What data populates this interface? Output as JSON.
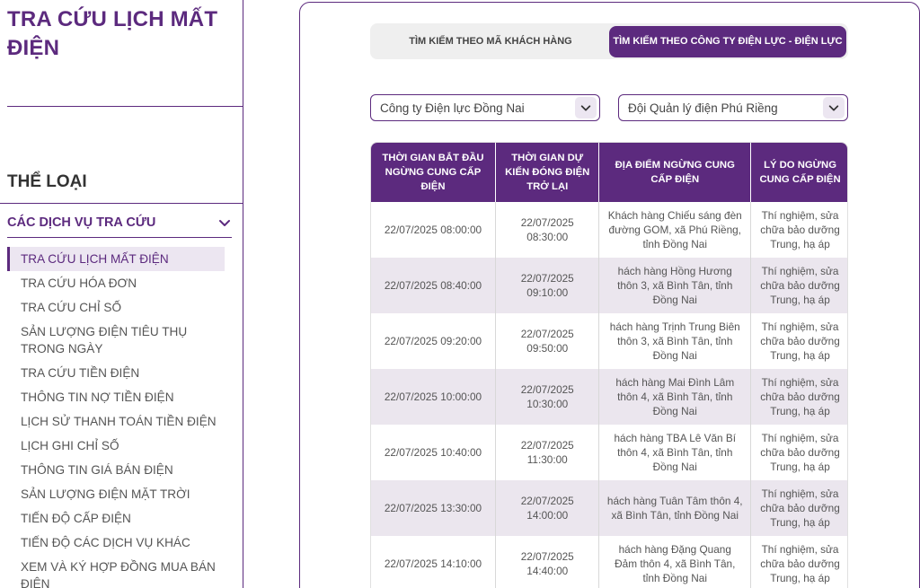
{
  "sidebar": {
    "title": "TRA CỨU LỊCH MẤT ĐIỆN",
    "category_heading": "THỂ LOẠI",
    "group_label": "CÁC DỊCH VỤ TRA CỨU",
    "items": [
      {
        "label": "TRA CỨU LỊCH MẤT ĐIỆN",
        "active": true
      },
      {
        "label": "TRA CỨU HÓA ĐƠN"
      },
      {
        "label": "TRA CỨU CHỈ SỐ"
      },
      {
        "label": "SẢN LƯỢNG ĐIỆN TIÊU THỤ TRONG NGÀY"
      },
      {
        "label": "TRA CỨU TIỀN ĐIỆN"
      },
      {
        "label": "THÔNG TIN NỢ TIỀN ĐIỆN"
      },
      {
        "label": "LỊCH SỬ THANH TOÁN TIỀN ĐIỆN"
      },
      {
        "label": "LỊCH GHI CHỈ SỐ"
      },
      {
        "label": "THÔNG TIN GIÁ BÁN ĐIỆN"
      },
      {
        "label": "SẢN LƯỢNG ĐIỆN MẶT TRỜI"
      },
      {
        "label": "TIẾN ĐỘ CẤP ĐIỆN"
      },
      {
        "label": "TIẾN ĐỘ CÁC DỊCH VỤ KHÁC"
      },
      {
        "label": "XEM VÀ KÝ HỢP ĐỒNG MUA BÁN ĐIỆN"
      }
    ]
  },
  "tabs": [
    {
      "label": "TÌM KIẾM THEO MÃ KHÁCH HÀNG",
      "active": false
    },
    {
      "label": "TÌM KIẾM THEO CÔNG TY ĐIỆN LỰC - ĐIỆN LỰC",
      "active": true
    }
  ],
  "filters": {
    "company": "Công ty Điện lực Đồng Nai",
    "unit": "Đội Quản lý điện Phú Riềng"
  },
  "table": {
    "headers": [
      "THỜI GIAN BẮT ĐẦU NGỪNG CUNG CẤP ĐIỆN",
      "THỜI GIAN DỰ KIẾN ĐÓNG ĐIỆN TRỞ LẠI",
      "ĐỊA ĐIỂM NGỪNG CUNG CẤP ĐIỆN",
      "LÝ DO NGỪNG CUNG CẤP ĐIỆN"
    ],
    "rows": [
      [
        "22/07/2025 08:00:00",
        "22/07/2025 08:30:00",
        "Khách hàng Chiếu sáng đèn đường GOM, xã Phú Riềng, tỉnh Đồng Nai",
        "Thí nghiệm, sửa chữa bảo dưỡng Trung, hạ áp"
      ],
      [
        "22/07/2025 08:40:00",
        "22/07/2025 09:10:00",
        "hách hàng Hồng Hương thôn 3, xã Bình Tân, tỉnh Đồng Nai",
        "Thí nghiệm, sửa chữa bảo dưỡng Trung, hạ áp"
      ],
      [
        "22/07/2025 09:20:00",
        "22/07/2025 09:50:00",
        "hách hàng Trịnh Trung Biên thôn 3, xã Bình Tân, tỉnh Đồng Nai",
        "Thí nghiệm, sửa chữa bảo dưỡng Trung, hạ áp"
      ],
      [
        "22/07/2025 10:00:00",
        "22/07/2025 10:30:00",
        "hách hàng Mai Đình Lâm thôn 4, xã Bình Tân, tỉnh Đồng Nai",
        "Thí nghiệm, sửa chữa bảo dưỡng Trung, hạ áp"
      ],
      [
        "22/07/2025 10:40:00",
        "22/07/2025 11:30:00",
        "hách hàng TBA Lê Văn Bí thôn 4, xã Bình Tân, tỉnh Đồng Nai",
        "Thí nghiệm, sửa chữa bảo dưỡng Trung, hạ áp"
      ],
      [
        "22/07/2025 13:30:00",
        "22/07/2025 14:00:00",
        "hách hàng Tuân Tâm thôn 4, xã Bình Tân, tỉnh Đồng Nai",
        "Thí nghiệm, sửa chữa bảo dưỡng Trung, hạ áp"
      ],
      [
        "22/07/2025 14:10:00",
        "22/07/2025 14:40:00",
        "hách hàng Đặng Quang Đảm thôn 4, xã Bình Tân, tỉnh Đồng Nai",
        "Thí nghiệm, sửa chữa bảo dưỡng Trung, hạ áp"
      ]
    ]
  },
  "icons": {
    "group_toggle": "chevron-down-icon",
    "select_arrow": "chevron-down-icon"
  },
  "colors": {
    "accent": "#5c2a7e",
    "row_alt": "#ebe6ee",
    "tab_bg": "#efefef"
  }
}
